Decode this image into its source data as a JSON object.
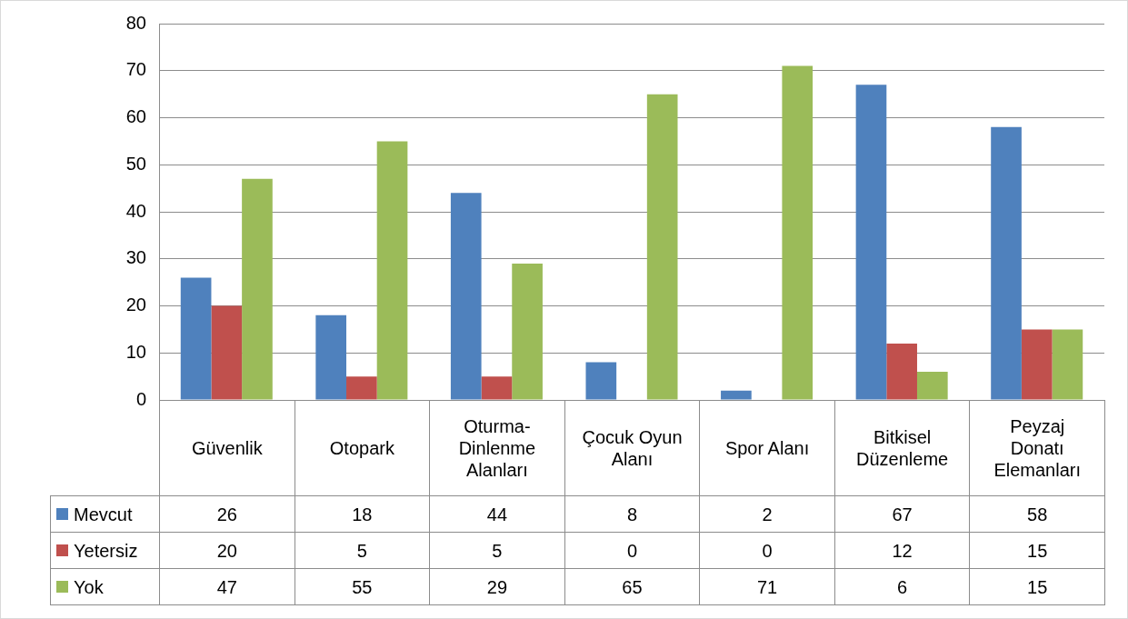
{
  "chart_data": {
    "type": "bar",
    "categories": [
      "Güvenlik",
      "Otopark",
      "Oturma-Dinlenme Alanları",
      "Çocuk Oyun Alanı",
      "Spor Alanı",
      "Bitkisel Düzenleme",
      "Peyzaj Donatı Elemanları"
    ],
    "series": [
      {
        "name": "Mevcut",
        "color": "#4f81bd",
        "values": [
          26,
          18,
          44,
          8,
          2,
          67,
          58
        ]
      },
      {
        "name": "Yetersiz",
        "color": "#c0504d",
        "values": [
          20,
          5,
          5,
          0,
          0,
          12,
          15
        ]
      },
      {
        "name": "Yok",
        "color": "#9bbb59",
        "values": [
          47,
          55,
          29,
          65,
          71,
          6,
          15
        ]
      }
    ],
    "ylim": [
      0,
      80
    ],
    "yticks": [
      0,
      10,
      20,
      30,
      40,
      50,
      60,
      70,
      80
    ],
    "grid": "y",
    "legend": "bottom left",
    "data_labels": true
  }
}
